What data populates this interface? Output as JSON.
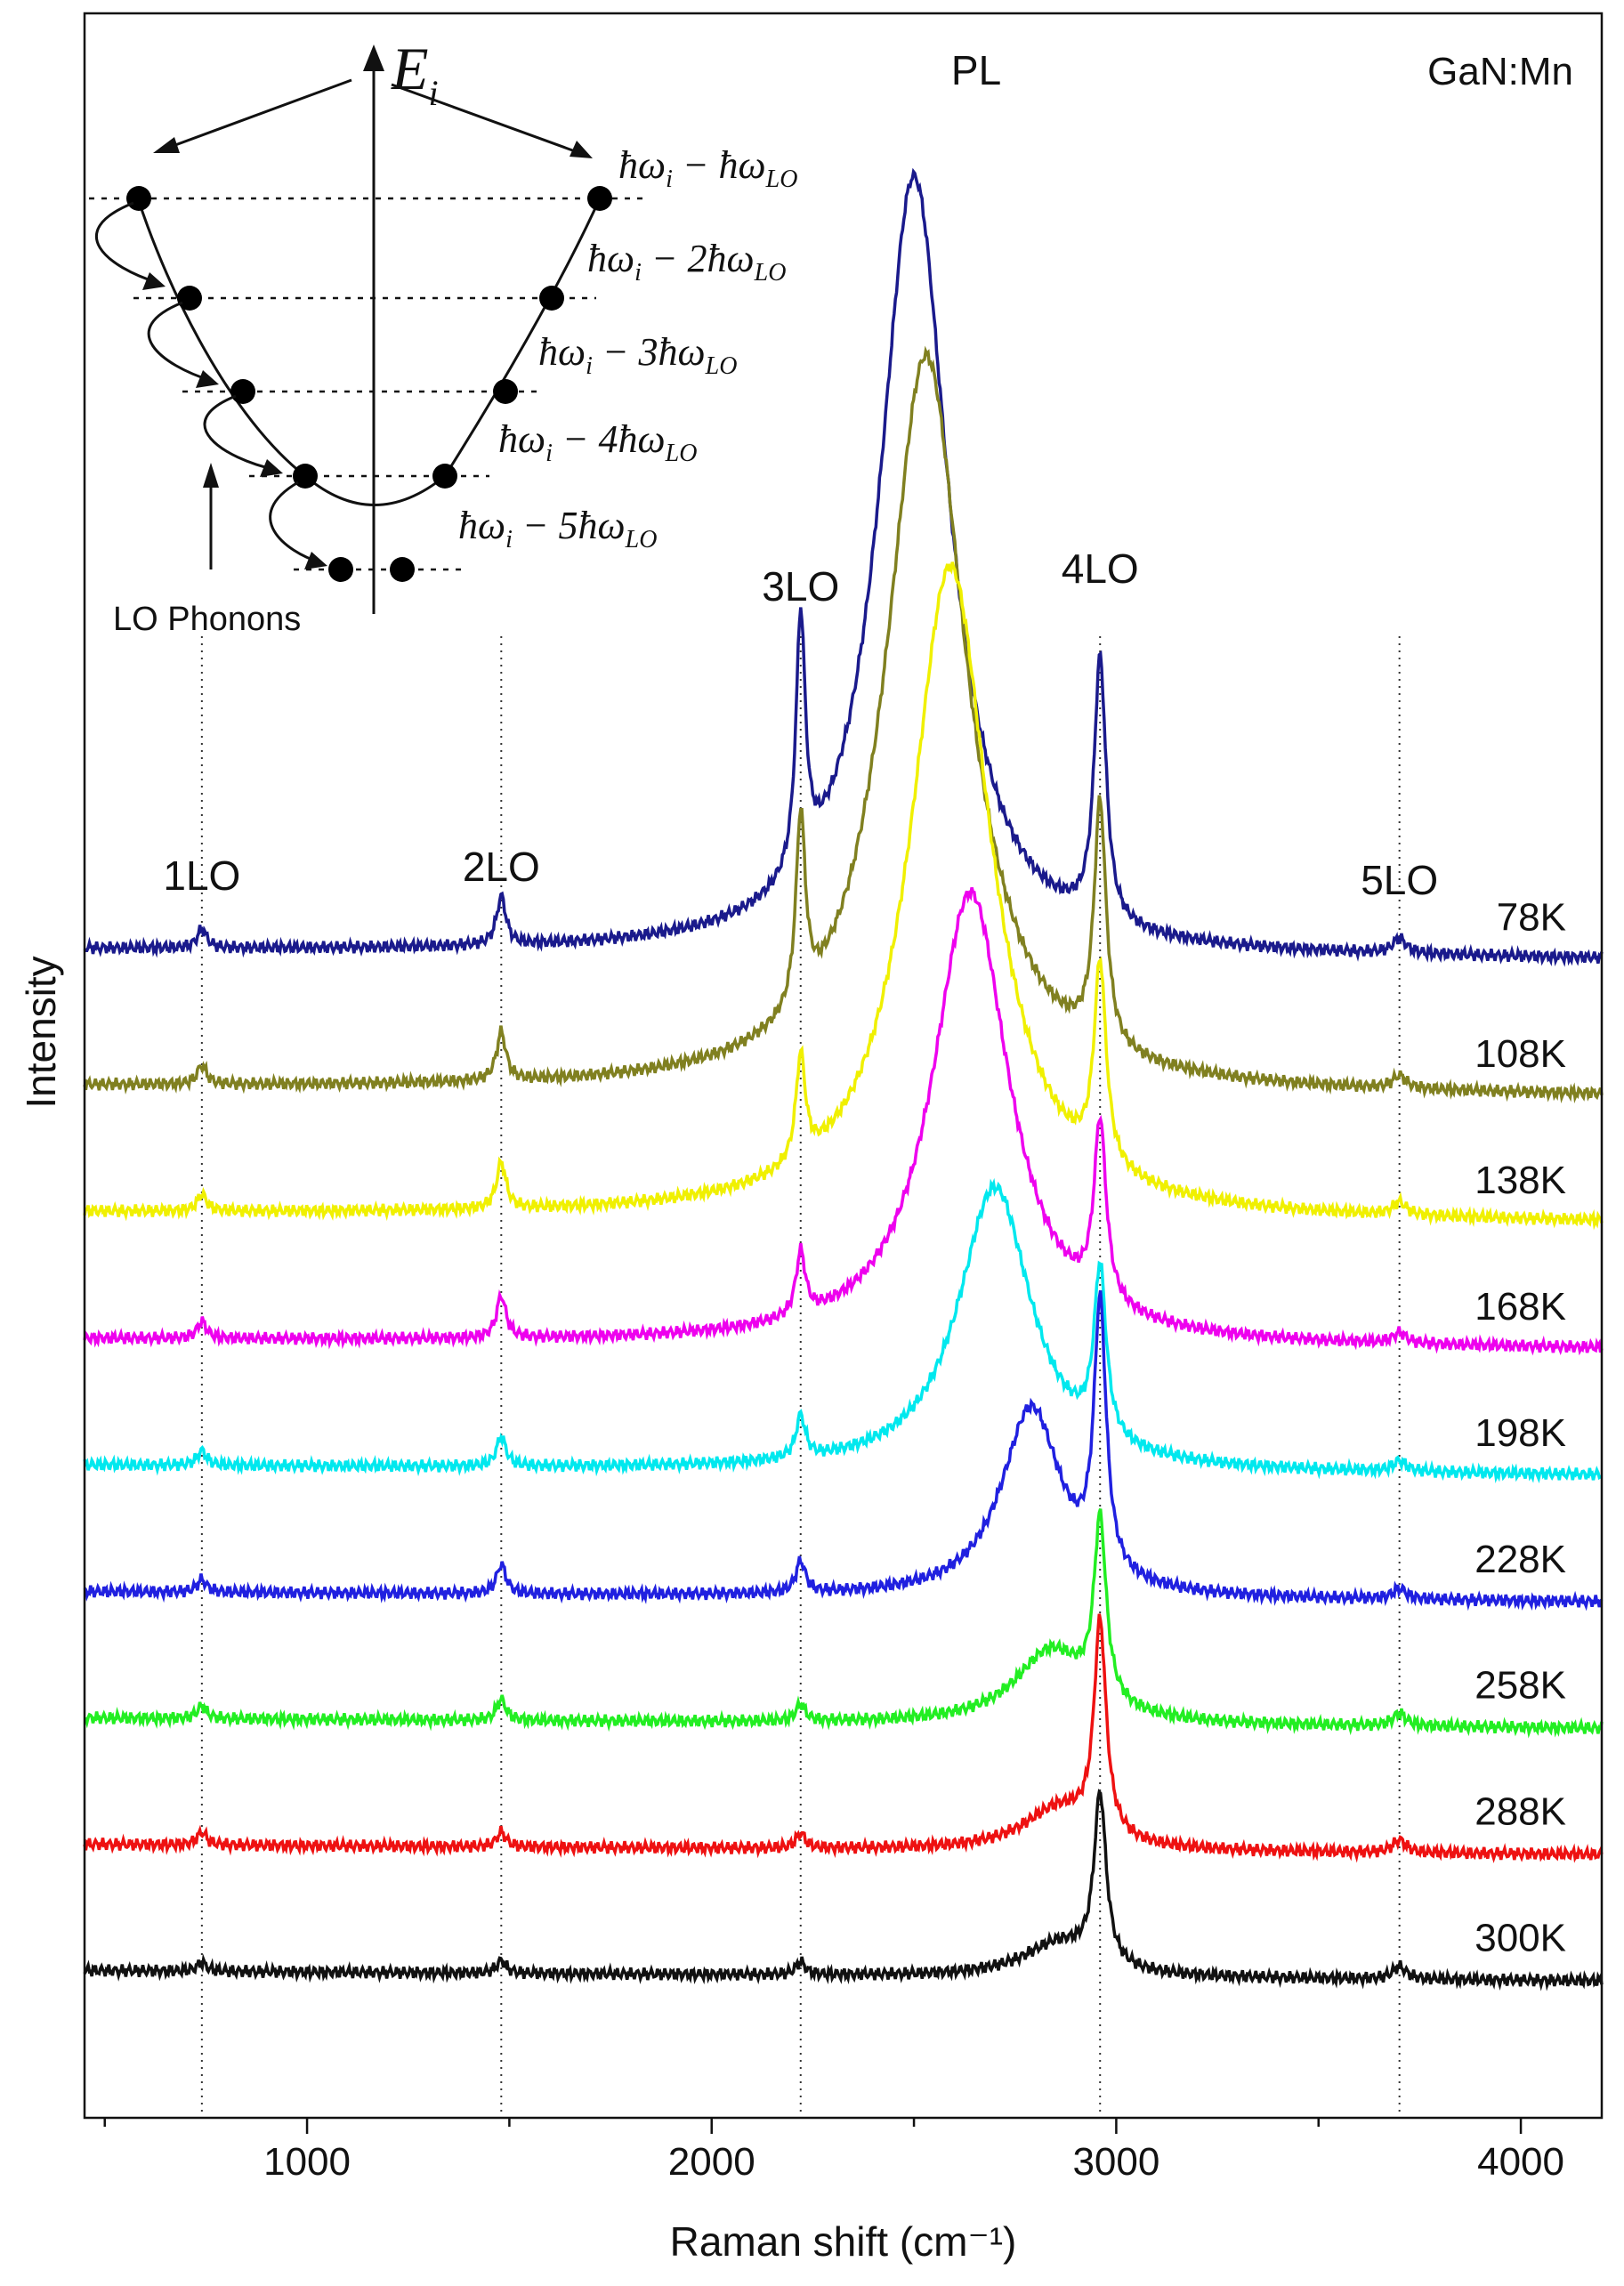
{
  "chart_data": {
    "type": "line",
    "title": "",
    "xlabel": "Raman shift (cm⁻¹)",
    "ylabel": "Intensity",
    "xlim": [
      450,
      4200
    ],
    "ylim": [
      0,
      100
    ],
    "xticks": [
      1000,
      2000,
      3000,
      4000
    ],
    "sample_label": "GaN:Mn",
    "peak_labels": [
      {
        "text": "1LO",
        "x": 740
      },
      {
        "text": "2LO",
        "x": 1480
      },
      {
        "text": "3LO",
        "x": 2220
      },
      {
        "text": "4LO",
        "x": 2960
      },
      {
        "text": "5LO",
        "x": 3700
      },
      {
        "text": "PL",
        "x": 2500
      }
    ],
    "phonon_lines_x": [
      740,
      1480,
      2220,
      2960,
      3700
    ],
    "series": [
      {
        "name": "78K",
        "color": "#1a1a8c",
        "baseline": 55.5,
        "pl_center": 2500,
        "pl_amp": 37.0,
        "pl_width": 105,
        "lo_peaks": [
          0.9,
          2.3,
          12.0,
          12.5,
          0.7
        ],
        "values": [
          [
            450,
            55.5
          ],
          [
            740,
            56.4
          ],
          [
            1480,
            57.8
          ],
          [
            2000,
            56.6
          ],
          [
            2220,
            67.5
          ],
          [
            2260,
            62.0
          ],
          [
            2500,
            92.5
          ],
          [
            2680,
            61.0
          ],
          [
            2780,
            59.5
          ],
          [
            2880,
            57.2
          ],
          [
            2960,
            68.0
          ],
          [
            3100,
            58.5
          ],
          [
            3300,
            55.9
          ],
          [
            3700,
            56.2
          ],
          [
            4200,
            55.5
          ]
        ]
      },
      {
        "name": "108K",
        "color": "#808020",
        "baseline": 49.0,
        "pl_center": 2530,
        "pl_amp": 35.0,
        "pl_width": 120,
        "lo_peaks": [
          0.9,
          2.3,
          9.0,
          11.5,
          0.6
        ],
        "values": [
          [
            450,
            49.0
          ],
          [
            740,
            49.9
          ],
          [
            1480,
            51.3
          ],
          [
            2220,
            58.0
          ],
          [
            2530,
            84.0
          ],
          [
            2880,
            50.5
          ],
          [
            2960,
            60.5
          ],
          [
            3700,
            49.6
          ],
          [
            4200,
            48.3
          ]
        ]
      },
      {
        "name": "138K",
        "color": "#f0f000",
        "baseline": 43.0,
        "pl_center": 2590,
        "pl_amp": 31.0,
        "pl_width": 120,
        "lo_peaks": [
          0.8,
          2.2,
          5.0,
          9.5,
          0.6
        ],
        "values": [
          [
            450,
            43.0
          ],
          [
            740,
            43.8
          ],
          [
            1480,
            45.2
          ],
          [
            2220,
            48.0
          ],
          [
            2590,
            74.0
          ],
          [
            2900,
            45.0
          ],
          [
            2960,
            52.5
          ],
          [
            3700,
            43.6
          ],
          [
            4200,
            42.3
          ]
        ]
      },
      {
        "name": "168K",
        "color": "#ee00ee",
        "baseline": 37.0,
        "pl_center": 2640,
        "pl_amp": 21.5,
        "pl_width": 115,
        "lo_peaks": [
          0.8,
          2.0,
          3.0,
          8.5,
          0.5
        ],
        "values": [
          [
            450,
            37.0
          ],
          [
            740,
            37.8
          ],
          [
            1480,
            39.0
          ],
          [
            2220,
            40.0
          ],
          [
            2640,
            58.5
          ],
          [
            2900,
            38.5
          ],
          [
            2960,
            45.5
          ],
          [
            3700,
            37.5
          ],
          [
            4200,
            36.3
          ]
        ]
      },
      {
        "name": "198K",
        "color": "#00e8ee",
        "baseline": 31.0,
        "pl_center": 2700,
        "pl_amp": 13.5,
        "pl_width": 110,
        "lo_peaks": [
          0.7,
          1.4,
          2.0,
          8.0,
          0.5
        ],
        "values": [
          [
            450,
            31.0
          ],
          [
            740,
            31.7
          ],
          [
            1480,
            32.4
          ],
          [
            2220,
            33.0
          ],
          [
            2700,
            44.5
          ],
          [
            2960,
            39.0
          ],
          [
            3700,
            31.5
          ],
          [
            4200,
            30.3
          ]
        ]
      },
      {
        "name": "228K",
        "color": "#2020e0",
        "baseline": 25.0,
        "pl_center": 2790,
        "pl_amp": 9.0,
        "pl_width": 90,
        "lo_peaks": [
          0.6,
          1.4,
          1.5,
          12.5,
          0.5
        ],
        "values": [
          [
            450,
            25.0
          ],
          [
            740,
            25.6
          ],
          [
            1480,
            26.4
          ],
          [
            2220,
            26.5
          ],
          [
            2790,
            34.0
          ],
          [
            2960,
            37.5
          ],
          [
            3700,
            25.5
          ],
          [
            4200,
            24.6
          ]
        ]
      },
      {
        "name": "258K",
        "color": "#22ee22",
        "baseline": 19.0,
        "pl_center": 2840,
        "pl_amp": 3.5,
        "pl_width": 110,
        "lo_peaks": [
          0.6,
          1.0,
          0.8,
          8.5,
          0.6
        ],
        "values": [
          [
            450,
            19.0
          ],
          [
            740,
            19.6
          ],
          [
            1480,
            20.0
          ],
          [
            2220,
            19.8
          ],
          [
            2960,
            29.0
          ],
          [
            3700,
            19.6
          ],
          [
            4200,
            18.6
          ]
        ]
      },
      {
        "name": "288K",
        "color": "#ee1111",
        "baseline": 13.0,
        "pl_center": 2860,
        "pl_amp": 2.0,
        "pl_width": 110,
        "lo_peaks": [
          0.6,
          0.7,
          0.7,
          10.0,
          0.6
        ],
        "values": [
          [
            450,
            13.0
          ],
          [
            740,
            13.6
          ],
          [
            1480,
            13.7
          ],
          [
            2220,
            13.7
          ],
          [
            2960,
            24.0
          ],
          [
            3700,
            13.6
          ],
          [
            4200,
            12.6
          ]
        ]
      },
      {
        "name": "300K",
        "color": "#111111",
        "baseline": 7.0,
        "pl_center": 2860,
        "pl_amp": 1.6,
        "pl_width": 110,
        "lo_peaks": [
          0.4,
          0.6,
          0.6,
          8.0,
          0.6
        ],
        "values": [
          [
            450,
            7.0
          ],
          [
            740,
            7.4
          ],
          [
            1480,
            7.6
          ],
          [
            2220,
            7.6
          ],
          [
            2960,
            15.5
          ],
          [
            3700,
            7.6
          ],
          [
            4200,
            6.8
          ]
        ]
      }
    ],
    "inset": {
      "energy_label": "E",
      "energy_subscript": "i",
      "phonons_label": "LO Phonons",
      "levels": [
        {
          "text": "ħωi − ħωLO",
          "main": "ħω",
          "sub": "i",
          "mid": " − ħω",
          "sub2": "LO"
        },
        {
          "text": "ħωi − 2ħωLO",
          "main": "ħω",
          "sub": "i",
          "mid": " − 2ħω",
          "sub2": "LO"
        },
        {
          "text": "ħωi − 3ħωLO",
          "main": "ħω",
          "sub": "i",
          "mid": " − 3ħω",
          "sub2": "LO"
        },
        {
          "text": "ħωi − 4ħωLO",
          "main": "ħω",
          "sub": "i",
          "mid": " − 4ħω",
          "sub2": "LO"
        },
        {
          "text": "ħωi − 5ħωLO",
          "main": "ħω",
          "sub": "i",
          "mid": " − 5ħω",
          "sub2": "LO"
        }
      ]
    }
  }
}
